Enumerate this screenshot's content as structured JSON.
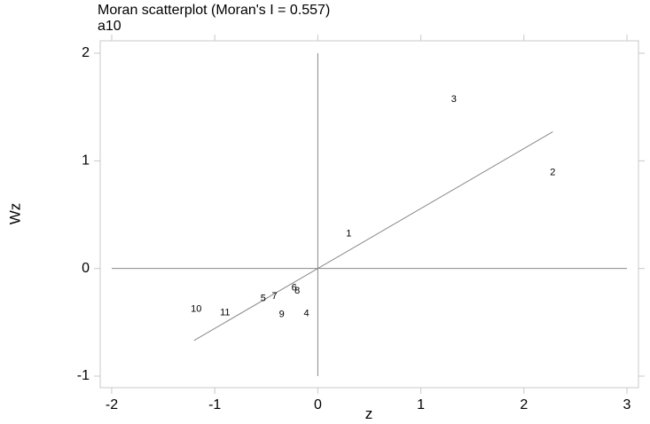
{
  "chart_data": {
    "type": "scatter",
    "title": "Moran scatterplot (Moran's I = 0.557)",
    "subtitle": "a10",
    "xlabel": "z",
    "ylabel": "Wz",
    "xlim": [
      -2,
      3
    ],
    "ylim": [
      -1,
      2
    ],
    "xticks": [
      -2,
      -1,
      0,
      1,
      2,
      3
    ],
    "yticks": [
      -1,
      0,
      1,
      2
    ],
    "grid": false,
    "points": [
      {
        "label": "1",
        "x": 0.3,
        "y": 0.32
      },
      {
        "label": "2",
        "x": 2.28,
        "y": 0.89
      },
      {
        "label": "3",
        "x": 1.32,
        "y": 1.57
      },
      {
        "label": "4",
        "x": -0.11,
        "y": -0.42
      },
      {
        "label": "5",
        "x": -0.53,
        "y": -0.28
      },
      {
        "label": "6",
        "x": -0.23,
        "y": -0.18
      },
      {
        "label": "7",
        "x": -0.42,
        "y": -0.26
      },
      {
        "label": "8",
        "x": -0.2,
        "y": -0.21
      },
      {
        "label": "9",
        "x": -0.35,
        "y": -0.43
      },
      {
        "label": "10",
        "x": -1.18,
        "y": -0.38
      },
      {
        "label": "11",
        "x": -0.9,
        "y": -0.41
      }
    ],
    "reference_lines": {
      "vertical_x": 0,
      "horizontal_y": 0
    },
    "regression_line": {
      "slope": 0.557,
      "intercept": 0,
      "x_range": [
        -1.2,
        2.28
      ]
    },
    "colors": {
      "frame": "#c8c8c8",
      "lines": "#888888",
      "text": "#000000"
    }
  }
}
